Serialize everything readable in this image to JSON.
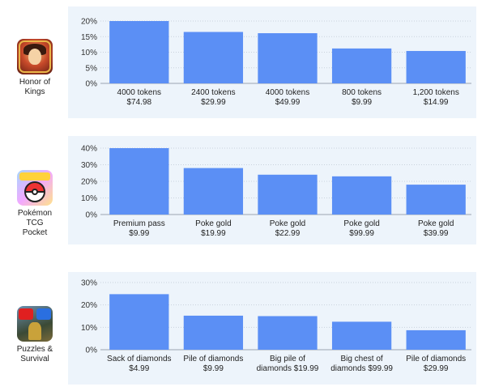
{
  "apps": [
    {
      "label": "Honor of\nKings",
      "icon": "honor-of-kings-app-icon"
    },
    {
      "label": "Pokémon\nTCG\nPocket",
      "icon": "pokemon-tcg-pocket-app-icon"
    },
    {
      "label": "Puzzles &\nSurvival",
      "icon": "puzzles-and-survival-app-icon"
    }
  ],
  "chart_data": [
    {
      "type": "bar",
      "title": "",
      "xlabel": "",
      "ylabel": "",
      "ylim": [
        0,
        20
      ],
      "yticks": [
        "0%",
        "5%",
        "10%",
        "15%",
        "20%"
      ],
      "categories": [
        "4000 tokens\n$74.98",
        "2400 tokens\n$29.99",
        "4000 tokens\n$49.99",
        "800 tokens\n$9.99",
        "1,200 tokens\n$14.99"
      ],
      "values": [
        20.5,
        16.5,
        16.1,
        11.2,
        10.4
      ],
      "grid": true,
      "bar_color": "#5b8ff5"
    },
    {
      "type": "bar",
      "title": "",
      "xlabel": "",
      "ylabel": "",
      "ylim": [
        0,
        40
      ],
      "yticks": [
        "0%",
        "10%",
        "20%",
        "30%",
        "40%"
      ],
      "categories": [
        "Premium pass\n$9.99",
        "Poke gold\n$19.99",
        "Poke gold\n$22.99",
        "Poke gold\n$99.99",
        "Poke gold\n$39.99"
      ],
      "values": [
        40,
        28,
        24,
        23,
        18
      ],
      "grid": true,
      "bar_color": "#5b8ff5"
    },
    {
      "type": "bar",
      "title": "",
      "xlabel": "",
      "ylabel": "",
      "ylim": [
        0,
        30
      ],
      "yticks": [
        "0%",
        "10%",
        "20%",
        "30%"
      ],
      "categories": [
        "Sack of diamonds\n$4.99",
        "Pile of diamonds\n$9.99",
        "Big pile of\ndiamonds $19.99",
        "Big chest of\ndiamonds $99.99",
        "Pile of diamonds\n$29.99"
      ],
      "values": [
        24.8,
        15.2,
        15.0,
        12.5,
        8.7
      ],
      "grid": true,
      "bar_color": "#5b8ff5"
    }
  ]
}
